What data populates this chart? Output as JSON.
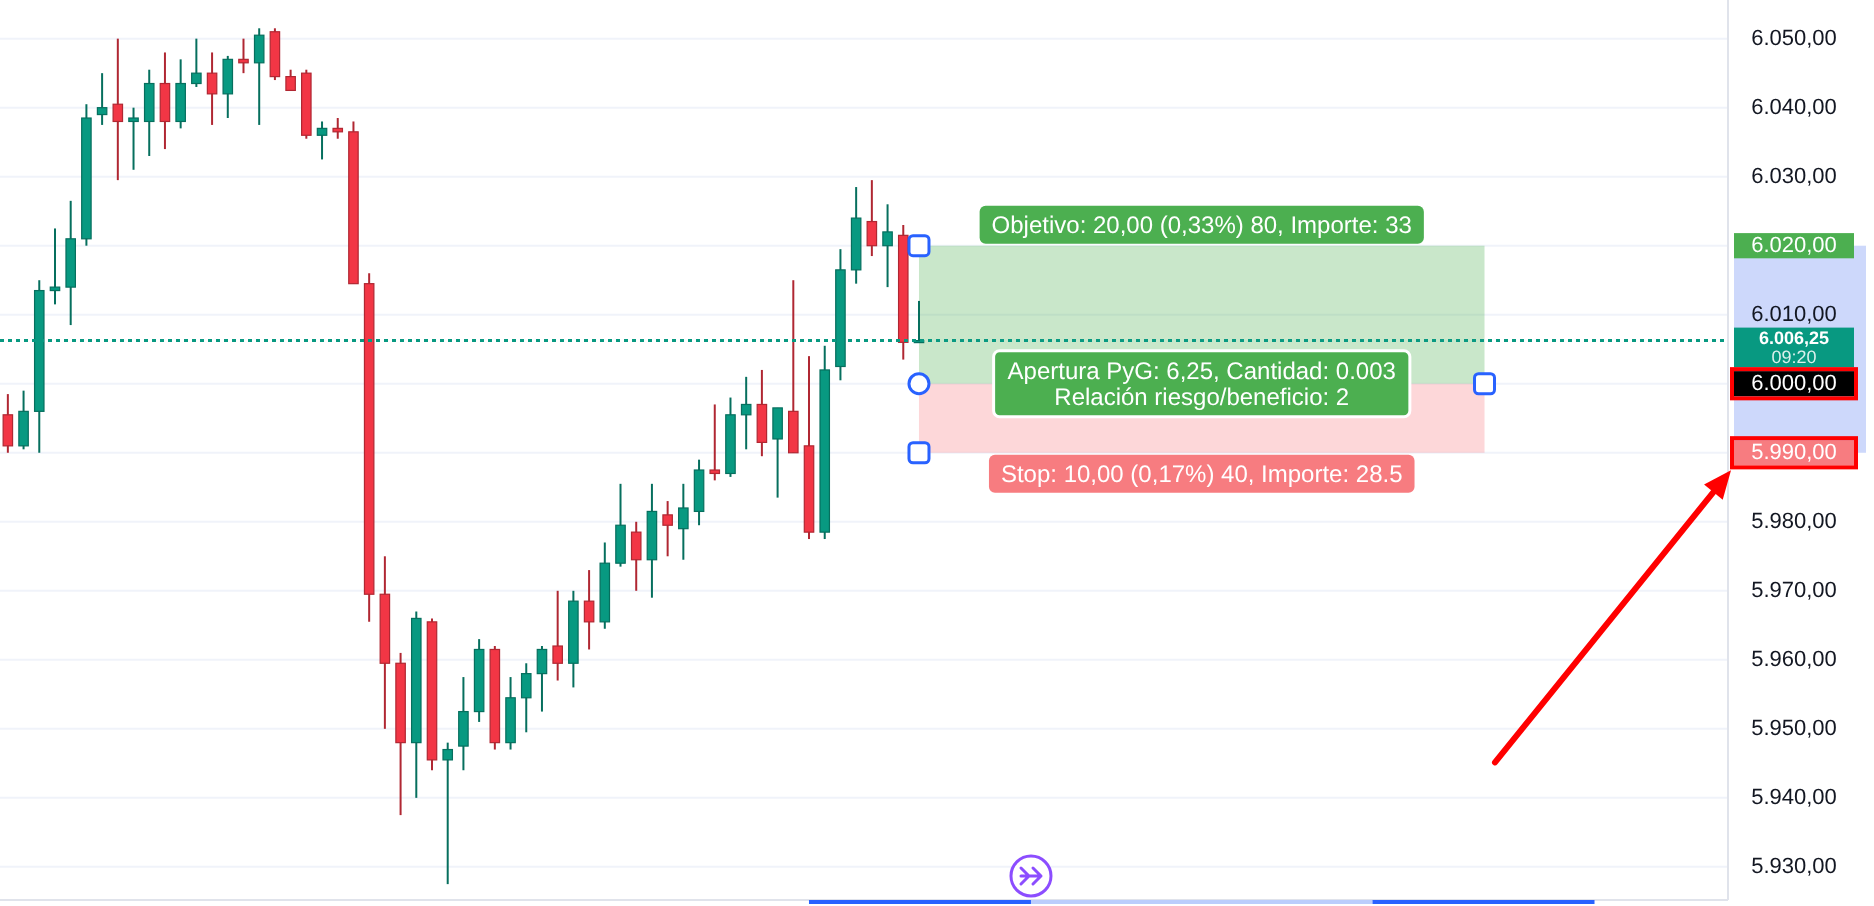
{
  "chart_data": {
    "type": "candlestick",
    "categories": [
      null,
      null,
      null,
      null,
      null,
      null,
      null,
      null,
      null,
      null,
      null,
      null,
      null,
      null,
      null,
      null,
      null,
      null,
      null,
      null,
      null,
      null,
      null,
      null,
      null,
      null,
      null,
      null,
      null,
      null,
      null,
      null,
      null,
      null,
      null,
      null,
      null,
      null,
      null,
      null,
      null,
      null,
      null,
      null,
      null,
      null,
      null,
      null,
      null,
      null,
      null,
      null,
      null,
      null,
      null,
      null,
      null,
      null,
      null,
      null,
      null,
      null,
      null,
      null,
      null,
      null,
      null,
      null,
      null,
      null,
      null,
      null,
      null,
      null,
      null,
      null,
      null,
      null,
      null,
      null,
      null,
      null,
      null,
      null,
      null,
      null,
      null,
      null,
      null,
      null,
      null,
      null,
      null,
      null,
      null,
      null,
      null,
      null,
      null,
      null,
      null,
      null,
      null,
      null,
      null,
      null,
      null,
      null,
      null,
      null
    ],
    "ohlc": [
      [
        5995.5,
        5998.5,
        5990,
        5991
      ],
      [
        5991,
        5999,
        5990.5,
        5996
      ],
      [
        5996,
        6015,
        5990,
        6013.5
      ],
      [
        6013.5,
        6022.5,
        6011.5,
        6014
      ],
      [
        6014,
        6026.5,
        6008.5,
        6021
      ],
      [
        6021,
        6040.5,
        6020,
        6038.5
      ],
      [
        6039,
        6045,
        6037.5,
        6040
      ],
      [
        6040.5,
        6050,
        6029.5,
        6038
      ],
      [
        6038,
        6040,
        6031,
        6038.5
      ],
      [
        6038,
        6045.5,
        6033,
        6043.5
      ],
      [
        6043.5,
        6048,
        6034,
        6038
      ],
      [
        6038,
        6047,
        6037,
        6043.5
      ],
      [
        6043.5,
        6050,
        6043,
        6045
      ],
      [
        6045,
        6048,
        6037.5,
        6042
      ],
      [
        6042,
        6047.5,
        6038.5,
        6047
      ],
      [
        6047,
        6050,
        6045,
        6046.5
      ],
      [
        6046.5,
        6051.5,
        6037.5,
        6050.5
      ],
      [
        6051,
        6051.5,
        6044,
        6044.5
      ],
      [
        6044.5,
        6045.5,
        6042.5,
        6042.5
      ],
      [
        6045,
        6045.5,
        6035.5,
        6036
      ],
      [
        6036,
        6038,
        6032.5,
        6037
      ],
      [
        6037,
        6038.5,
        6035.5,
        6036.5
      ],
      [
        6036.5,
        6038,
        6014.5,
        6014.5
      ],
      [
        6014.5,
        6016,
        5965.5,
        5969.5
      ],
      [
        5969.5,
        5975,
        5950,
        5959.5
      ],
      [
        5959.5,
        5961,
        5937.5,
        5948
      ],
      [
        5948,
        5967,
        5940,
        5966
      ],
      [
        5965.5,
        5966,
        5944,
        5945.5
      ],
      [
        5945.5,
        5948,
        5927.5,
        5947
      ],
      [
        5947.5,
        5957.5,
        5944,
        5952.5
      ],
      [
        5952.5,
        5963,
        5951,
        5961.5
      ],
      [
        5961.5,
        5962,
        5947,
        5948
      ],
      [
        5948,
        5957.5,
        5947,
        5954.5
      ],
      [
        5954.5,
        5959.5,
        5949.5,
        5958
      ],
      [
        5958,
        5962,
        5952.5,
        5961.5
      ],
      [
        5962,
        5970,
        5957,
        5959.5
      ],
      [
        5959.5,
        5970,
        5956,
        5968.5
      ],
      [
        5968.5,
        5973,
        5961.5,
        5965.5
      ],
      [
        5965.5,
        5977,
        5964.5,
        5974
      ],
      [
        5974,
        5985.5,
        5973.5,
        5979.5
      ],
      [
        5978.5,
        5980,
        5970,
        5974.5
      ],
      [
        5974.5,
        5985.5,
        5969,
        5981.5
      ],
      [
        5981,
        5983,
        5975,
        5979.5
      ],
      [
        5979,
        5985.5,
        5974.5,
        5982
      ],
      [
        5981.5,
        5989,
        5979.5,
        5987.5
      ],
      [
        5987.5,
        5997,
        5986,
        5987
      ],
      [
        5987,
        5998,
        5986.5,
        5995.5
      ],
      [
        5995.5,
        6001,
        5990.5,
        5997
      ],
      [
        5997,
        6002,
        5989.5,
        5991.5
      ],
      [
        5992,
        5996.5,
        5983.5,
        5996.5
      ],
      [
        5996,
        6015,
        5990,
        5990
      ],
      [
        5991,
        6004,
        5977.5,
        5978.5
      ],
      [
        5978.5,
        6005.5,
        5977.5,
        6002
      ],
      [
        6002.5,
        6019.5,
        6000.5,
        6016.5
      ],
      [
        6016.5,
        6028.5,
        6014.5,
        6024
      ],
      [
        6023.5,
        6029.5,
        6018.5,
        6020
      ],
      [
        6020,
        6026,
        6014,
        6022
      ],
      [
        6021.5,
        6023,
        6003.5,
        6006
      ],
      [
        6006,
        6012,
        6006,
        6006.25
      ],
      null,
      null,
      null,
      null,
      null,
      null,
      null,
      null,
      null,
      null,
      null,
      null,
      null,
      null,
      null,
      null,
      null,
      null,
      null,
      null,
      null,
      null,
      null,
      null,
      null,
      null,
      null,
      null,
      null,
      null,
      null,
      null,
      null,
      null,
      null,
      null,
      null,
      null,
      null,
      null,
      null,
      null,
      null,
      null,
      null,
      null,
      null,
      null,
      null,
      null,
      null
    ],
    "colors": [
      "#f23645",
      "#089981",
      "#089981",
      "#089981",
      "#089981",
      "#089981",
      "#089981",
      "#f23645",
      "#089981",
      "#089981",
      "#f23645",
      "#089981",
      "#089981",
      "#f23645",
      "#089981",
      "#f23645",
      "#089981",
      "#f23645",
      "#f23645",
      "#f23645",
      "#089981",
      "#f23645",
      "#f23645",
      "#f23645",
      "#f23645",
      "#f23645",
      "#089981",
      "#f23645",
      "#089981",
      "#089981",
      "#089981",
      "#f23645",
      "#089981",
      "#089981",
      "#089981",
      "#f23645",
      "#089981",
      "#f23645",
      "#089981",
      "#089981",
      "#f23645",
      "#089981",
      "#f23645",
      "#089981",
      "#089981",
      "#f23645",
      "#089981",
      "#089981",
      "#f23645",
      "#089981",
      "#f23645",
      "#f23645",
      "#089981",
      "#089981",
      "#089981",
      "#f23645",
      "#089981",
      "#f23645",
      "#089981",
      null,
      null,
      null,
      null,
      null,
      null,
      null,
      null,
      null,
      null,
      null,
      null,
      null,
      null,
      null,
      null,
      null,
      null,
      null,
      null,
      null,
      null,
      null,
      null,
      null,
      null,
      null,
      null,
      null,
      null,
      null,
      null,
      null,
      null,
      null,
      null,
      null,
      null,
      null,
      null,
      null,
      null,
      null,
      null,
      null,
      null,
      null,
      null,
      null,
      null,
      null
    ],
    "ylim": [
      5925.2,
      6055.6
    ],
    "yticks": [
      {
        "value": 5930,
        "label": "5.930,00"
      },
      {
        "value": 5940,
        "label": "5.940,00"
      },
      {
        "value": 5950,
        "label": "5.950,00"
      },
      {
        "value": 5960,
        "label": "5.960,00"
      },
      {
        "value": 5970,
        "label": "5.970,00"
      },
      {
        "value": 5980,
        "label": "5.980,00"
      },
      {
        "value": 5990,
        "label": "5.990,00"
      },
      {
        "value": 6000,
        "label": "6.000,00"
      },
      {
        "value": 6010,
        "label": "6.010,00"
      },
      {
        "value": 6020,
        "label": "6.020,00"
      },
      {
        "value": 6030,
        "label": "6.030,00"
      },
      {
        "value": 6040,
        "label": "6.040,00"
      },
      {
        "value": 6050,
        "label": "6.050,00"
      }
    ],
    "grid": "y",
    "ref_lines": [
      {
        "axis": "y",
        "value": 6006.25,
        "label": "6.006,25\n09:20",
        "color": "#089981",
        "line_style": "dotted"
      }
    ],
    "bands": [
      {
        "axis": "y",
        "from": 6000,
        "to": 6020,
        "label": "Objetivo: 20,00 (0,33%) 80, Importe: 33",
        "color": "#4caf50"
      },
      {
        "axis": "y",
        "from": 5990,
        "to": 6000,
        "label": "Stop: 10,00 (0,17%) 40, Importe: 28.5",
        "color": "#f77c80"
      }
    ],
    "annotations": [
      {
        "text": "Apertura PyG: 6,25, Cantidad: 0.003\nRelación riesgo/beneficio: 2",
        "y": 6000
      }
    ]
  }
}
